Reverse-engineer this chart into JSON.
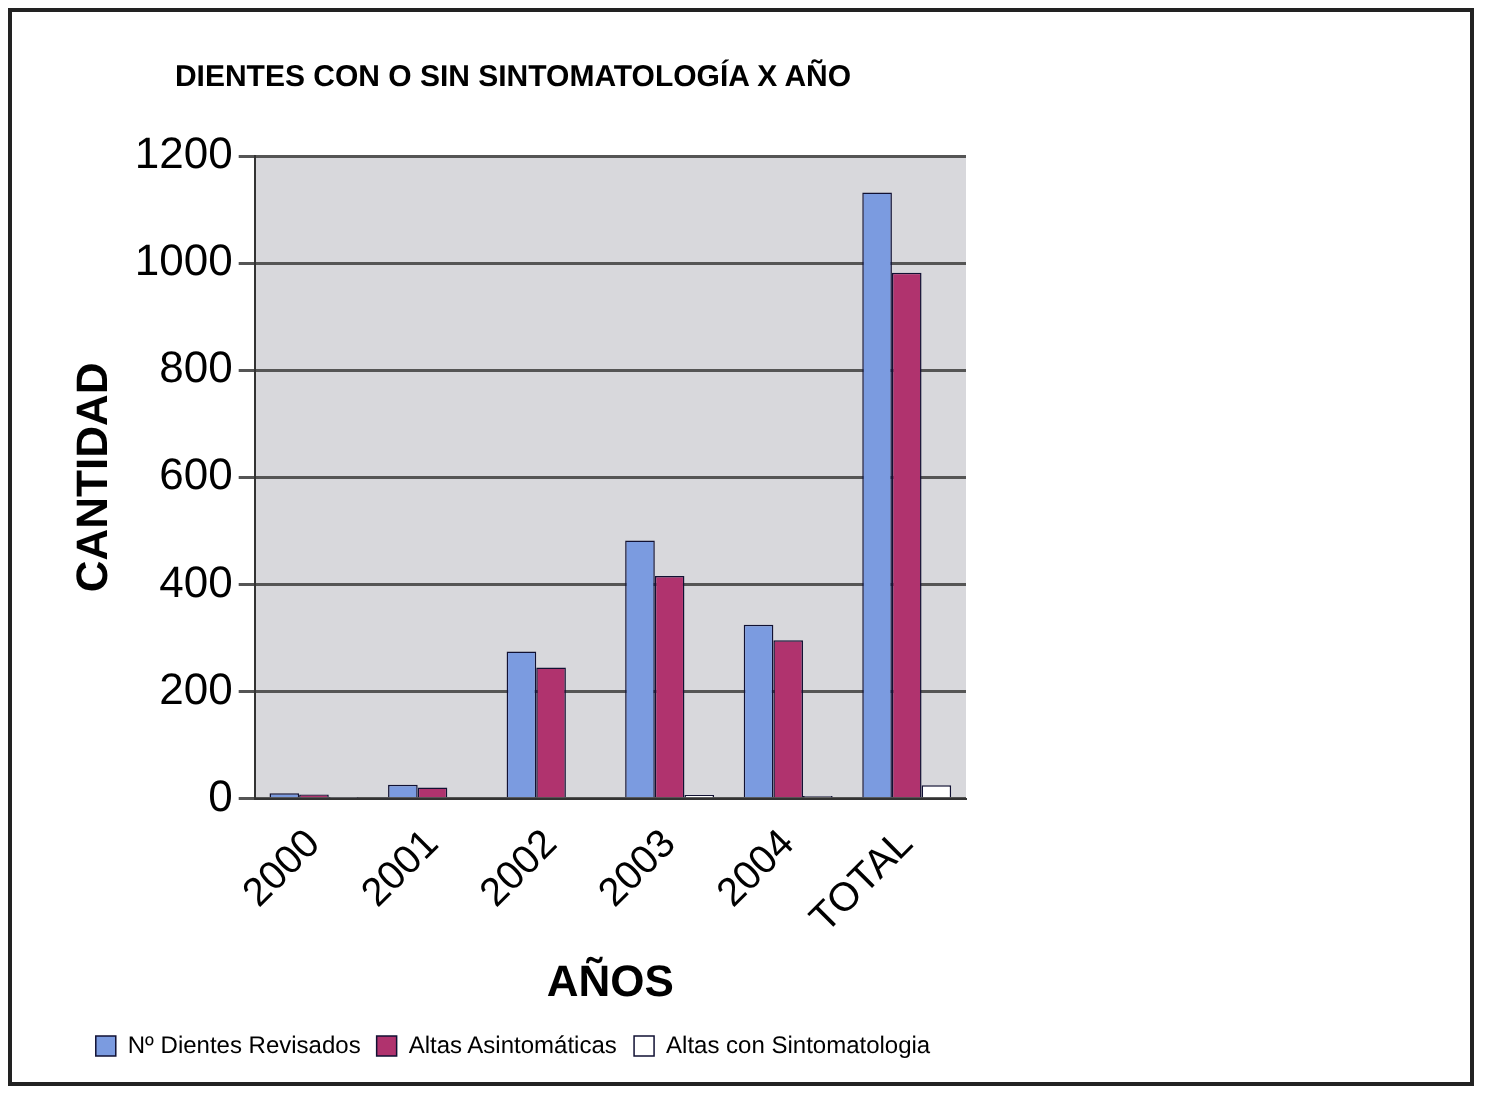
{
  "chart_data": {
    "type": "bar",
    "title": "DIENTES CON O SIN SINTOMATOLOGÍA X AÑO",
    "xlabel": "AÑOS",
    "ylabel": "CANTIDAD",
    "categories": [
      "2000",
      "2001",
      "2002",
      "2003",
      "2004",
      "TOTAL"
    ],
    "series": [
      {
        "name": "Nº Dientes Revisados",
        "color": "#7b9be0",
        "values": [
          10,
          26,
          275,
          482,
          325,
          1132
        ]
      },
      {
        "name": "Altas Asintomáticas",
        "color": "#b0336e",
        "values": [
          8,
          21,
          245,
          416,
          296,
          982
        ]
      },
      {
        "name": "Altas con Sintomatologia",
        "color": "#ffffff",
        "values": [
          2,
          0,
          0,
          7,
          5,
          25
        ]
      }
    ],
    "ylim": [
      0,
      1200
    ],
    "yticks": [
      0,
      200,
      400,
      600,
      800,
      1000,
      1200
    ],
    "grid": "y",
    "legend": "bottom"
  }
}
